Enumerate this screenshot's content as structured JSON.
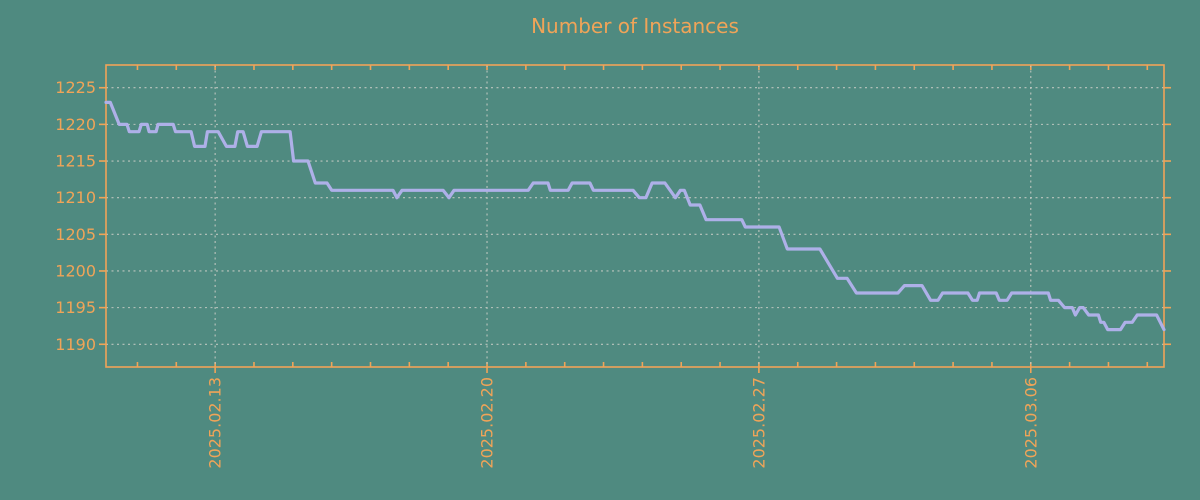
{
  "chart": {
    "title": "Number of Instances",
    "colors": {
      "background": "#4f8a80",
      "axis_orange": "#f0a458",
      "line_purple": "#aeb0e8",
      "grid_gray": "#c2c9c2"
    }
  },
  "chart_data": {
    "type": "line",
    "title": "Number of Instances",
    "grid": true,
    "legend_position": "none",
    "x_axis": {
      "epoch_date": "2025-02-10",
      "unit": "days_since_epoch",
      "domain": [
        0.19,
        27.43
      ],
      "major_ticks": [
        {
          "day": 3,
          "label": "2025.02.13"
        },
        {
          "day": 10,
          "label": "2025.02.20"
        },
        {
          "day": 17,
          "label": "2025.02.27"
        },
        {
          "day": 24,
          "label": "2025.03.06"
        }
      ],
      "minor_tick_every_days": 1
    },
    "y_axis": {
      "domain": [
        1186.9,
        1228.1
      ],
      "tick_values": [
        1190,
        1195,
        1200,
        1205,
        1210,
        1215,
        1220,
        1225
      ],
      "tick_step": 5
    },
    "series": [
      {
        "name": "instances",
        "start_value": 1223,
        "end_value": 1192,
        "points": [
          [
            0.19,
            1223
          ],
          [
            0.3,
            1223
          ],
          [
            0.53,
            1220
          ],
          [
            0.73,
            1220
          ],
          [
            0.79,
            1219
          ],
          [
            1.04,
            1219
          ],
          [
            1.1,
            1220
          ],
          [
            1.25,
            1220
          ],
          [
            1.3,
            1219
          ],
          [
            1.48,
            1219
          ],
          [
            1.53,
            1220
          ],
          [
            1.92,
            1220
          ],
          [
            1.98,
            1219
          ],
          [
            2.38,
            1219
          ],
          [
            2.47,
            1217
          ],
          [
            2.74,
            1217
          ],
          [
            2.8,
            1219
          ],
          [
            3.08,
            1219
          ],
          [
            3.29,
            1217
          ],
          [
            3.51,
            1217
          ],
          [
            3.58,
            1219
          ],
          [
            3.72,
            1219
          ],
          [
            3.83,
            1217
          ],
          [
            4.08,
            1217
          ],
          [
            4.19,
            1219
          ],
          [
            4.93,
            1219
          ],
          [
            5.02,
            1215
          ],
          [
            5.39,
            1215
          ],
          [
            5.58,
            1212
          ],
          [
            5.88,
            1212
          ],
          [
            6.0,
            1211
          ],
          [
            7.58,
            1211
          ],
          [
            7.68,
            1210
          ],
          [
            7.81,
            1211
          ],
          [
            8.87,
            1211
          ],
          [
            9.02,
            1210
          ],
          [
            9.15,
            1211
          ],
          [
            11.06,
            1211
          ],
          [
            11.19,
            1212
          ],
          [
            11.57,
            1212
          ],
          [
            11.63,
            1211
          ],
          [
            12.09,
            1211
          ],
          [
            12.19,
            1212
          ],
          [
            12.65,
            1212
          ],
          [
            12.74,
            1211
          ],
          [
            13.76,
            1211
          ],
          [
            13.92,
            1210
          ],
          [
            14.09,
            1210
          ],
          [
            14.25,
            1212
          ],
          [
            14.58,
            1212
          ],
          [
            14.85,
            1210
          ],
          [
            14.98,
            1211
          ],
          [
            15.08,
            1211
          ],
          [
            15.23,
            1209
          ],
          [
            15.48,
            1209
          ],
          [
            15.64,
            1207
          ],
          [
            16.56,
            1207
          ],
          [
            16.65,
            1206
          ],
          [
            17.52,
            1206
          ],
          [
            17.73,
            1203
          ],
          [
            18.57,
            1203
          ],
          [
            19.02,
            1199
          ],
          [
            19.27,
            1199
          ],
          [
            19.51,
            1197
          ],
          [
            20.58,
            1197
          ],
          [
            20.75,
            1198
          ],
          [
            21.2,
            1198
          ],
          [
            21.42,
            1196
          ],
          [
            21.61,
            1196
          ],
          [
            21.73,
            1197
          ],
          [
            22.38,
            1197
          ],
          [
            22.5,
            1196
          ],
          [
            22.62,
            1196
          ],
          [
            22.68,
            1197
          ],
          [
            23.11,
            1197
          ],
          [
            23.19,
            1196
          ],
          [
            23.39,
            1196
          ],
          [
            23.51,
            1197
          ],
          [
            24.45,
            1197
          ],
          [
            24.51,
            1196
          ],
          [
            24.71,
            1196
          ],
          [
            24.87,
            1195
          ],
          [
            25.07,
            1195
          ],
          [
            25.15,
            1194
          ],
          [
            25.26,
            1195
          ],
          [
            25.35,
            1195
          ],
          [
            25.49,
            1194
          ],
          [
            25.74,
            1194
          ],
          [
            25.8,
            1193
          ],
          [
            25.88,
            1193
          ],
          [
            25.98,
            1192
          ],
          [
            26.31,
            1192
          ],
          [
            26.43,
            1193
          ],
          [
            26.61,
            1193
          ],
          [
            26.74,
            1194
          ],
          [
            27.24,
            1194
          ],
          [
            27.43,
            1192
          ]
        ]
      }
    ]
  }
}
